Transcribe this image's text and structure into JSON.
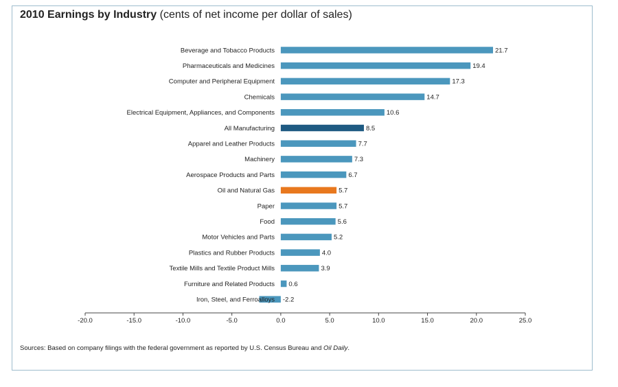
{
  "title": "2010 Earnings by Industry",
  "subtitle": "(cents of net income per dollar of sales)",
  "source_prefix": "Sources: Based on company filings with the federal government as reported by U.S. Census Bureau and ",
  "source_italic": "Oil Daily",
  "source_suffix": ".",
  "colors": {
    "bar_default": "#4b97bd",
    "bar_all_manufacturing": "#1e5a82",
    "bar_oil_gas": "#e8781e",
    "frame_border": "#9dbccd"
  },
  "chart_data": {
    "type": "bar",
    "orientation": "horizontal",
    "title": "2010 Earnings by Industry",
    "subtitle": "(cents of net income per dollar of sales)",
    "xlabel": "",
    "ylabel": "",
    "xlim": [
      -20,
      25
    ],
    "ticks": [
      -20,
      -15,
      -10,
      -5,
      0,
      5,
      10,
      15,
      20,
      25
    ],
    "tick_labels": [
      "-20.0",
      "-15.0",
      "-10.0",
      "-5.0",
      "0.0",
      "5.0",
      "10.0",
      "15.0",
      "20.0",
      "25.0"
    ],
    "grid": false,
    "categories": [
      "Beverage and Tobacco Products",
      "Pharmaceuticals and Medicines",
      "Computer and Peripheral Equipment",
      "Chemicals",
      "Electrical Equipment, Appliances, and Components",
      "All Manufacturing",
      "Apparel and Leather Products",
      "Machinery",
      "Aerospace Products and Parts",
      "Oil and Natural Gas",
      "Paper",
      "Food",
      "Motor Vehicles and Parts",
      "Plastics and Rubber Products",
      "Textile Mills and Textile Product Mills",
      "Furniture and Related Products",
      "Iron, Steel, and Ferroalloys"
    ],
    "values": [
      21.7,
      19.4,
      17.3,
      14.7,
      10.6,
      8.5,
      7.7,
      7.3,
      6.7,
      5.7,
      5.7,
      5.6,
      5.2,
      4.0,
      3.9,
      0.6,
      -2.2
    ],
    "value_labels": [
      "21.7",
      "19.4",
      "17.3",
      "14.7",
      "10.6",
      "8.5",
      "7.7",
      "7.3",
      "6.7",
      "5.7",
      "5.7",
      "5.6",
      "5.2",
      "4.0",
      "3.9",
      "0.6",
      "-2.2"
    ],
    "highlight": {
      "All Manufacturing": "#1e5a82",
      "Oil and Natural Gas": "#e8781e"
    }
  }
}
